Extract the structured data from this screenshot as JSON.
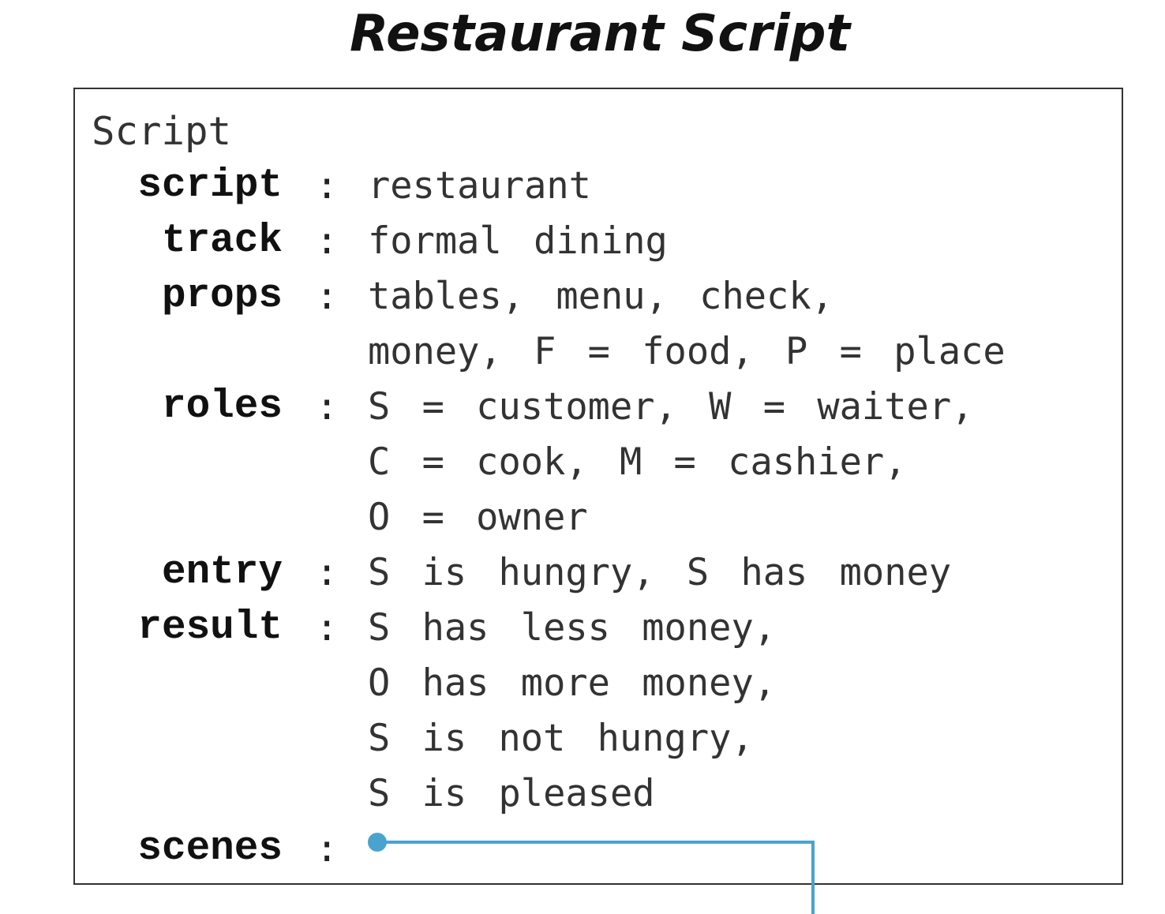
{
  "title": "Restaurant Script",
  "frame": {
    "header": "Script",
    "fields": [
      {
        "key": "script",
        "colon": ":",
        "lines": [
          "restaurant"
        ]
      },
      {
        "key": "track",
        "colon": ":",
        "lines": [
          "formal dining"
        ]
      },
      {
        "key": "props",
        "colon": ":",
        "lines": [
          "tables, menu, check,",
          "money, F = food, P = place"
        ]
      },
      {
        "key": "roles",
        "colon": ":",
        "lines": [
          "S = customer, W = waiter,",
          "C = cook, M = cashier,",
          "O = owner"
        ]
      },
      {
        "key": "entry",
        "colon": ":",
        "lines": [
          "S is hungry, S has money"
        ]
      },
      {
        "key": "result",
        "colon": ":",
        "lines": [
          "S has less money,",
          "O has more money,",
          "S is not hungry,",
          "S is pleased"
        ]
      },
      {
        "key": "scenes",
        "colon": ":",
        "lines": []
      }
    ]
  },
  "colors": {
    "connector": "#4aa3cf",
    "text": "#333333",
    "frame_border": "#333333"
  }
}
